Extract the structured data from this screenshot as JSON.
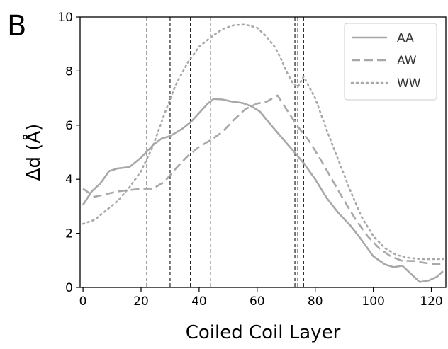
{
  "chart_data": {
    "type": "line",
    "panel_label": "B",
    "xlabel": "Coiled Coil Layer",
    "ylabel": "Δd (Å)",
    "xlim": [
      -1,
      125
    ],
    "ylim": [
      0,
      10
    ],
    "xticks": [
      0,
      20,
      40,
      60,
      80,
      100,
      120
    ],
    "yticks": [
      0,
      2,
      4,
      6,
      8,
      10
    ],
    "legend_position": "top-right",
    "grid": false,
    "vlines": [
      {
        "x": 22,
        "style": "dashed"
      },
      {
        "x": 30,
        "style": "dashed"
      },
      {
        "x": 37,
        "style": "dashed"
      },
      {
        "x": 44,
        "style": "dashed"
      },
      {
        "x": 73,
        "style": "dashed"
      },
      {
        "x": 74,
        "style": "dashed"
      },
      {
        "x": 76,
        "style": "dashed"
      }
    ],
    "series": [
      {
        "name": "AA",
        "style": "solid",
        "color": "#a8a8a8",
        "x": [
          0,
          3,
          6,
          9,
          12,
          16,
          20,
          24,
          27,
          30,
          34,
          37,
          40,
          43,
          45,
          48,
          51,
          55,
          58,
          61,
          64,
          68,
          72,
          76,
          80,
          84,
          88,
          92,
          96,
          100,
          104,
          107,
          110,
          113,
          116,
          119,
          122,
          124
        ],
        "y": [
          3.05,
          3.55,
          3.85,
          4.3,
          4.4,
          4.45,
          4.8,
          5.25,
          5.5,
          5.6,
          5.85,
          6.1,
          6.45,
          6.8,
          6.97,
          6.95,
          6.88,
          6.82,
          6.7,
          6.5,
          6.1,
          5.6,
          5.1,
          4.6,
          4.0,
          3.3,
          2.75,
          2.3,
          1.75,
          1.15,
          0.85,
          0.75,
          0.8,
          0.5,
          0.2,
          0.25,
          0.4,
          0.6
        ]
      },
      {
        "name": "AW",
        "style": "dashed",
        "color": "#a8a8a8",
        "x": [
          0,
          4,
          8,
          12,
          16,
          20,
          24,
          28,
          32,
          36,
          40,
          44,
          48,
          52,
          56,
          60,
          63,
          67,
          70,
          74,
          78,
          82,
          86,
          90,
          94,
          98,
          102,
          106,
          110,
          114,
          118,
          122,
          124
        ],
        "y": [
          3.65,
          3.35,
          3.45,
          3.55,
          3.6,
          3.65,
          3.65,
          3.9,
          4.4,
          4.85,
          5.2,
          5.45,
          5.75,
          6.2,
          6.6,
          6.8,
          6.85,
          7.1,
          6.6,
          5.95,
          5.4,
          4.7,
          3.95,
          3.2,
          2.5,
          1.9,
          1.45,
          1.15,
          0.98,
          0.98,
          0.9,
          0.85,
          0.9
        ]
      },
      {
        "name": "WW",
        "style": "dotted",
        "color": "#a8a8a8",
        "x": [
          0,
          4,
          8,
          12,
          16,
          20,
          24,
          28,
          32,
          36,
          40,
          44,
          48,
          52,
          56,
          60,
          63,
          66,
          68,
          70,
          72,
          74,
          76,
          80,
          84,
          88,
          92,
          96,
          100,
          104,
          108,
          112,
          116,
          120,
          124
        ],
        "y": [
          2.35,
          2.5,
          2.85,
          3.2,
          3.7,
          4.3,
          5.2,
          6.4,
          7.5,
          8.3,
          8.9,
          9.25,
          9.55,
          9.7,
          9.72,
          9.6,
          9.3,
          8.9,
          8.5,
          8.0,
          7.6,
          7.4,
          7.8,
          7.0,
          5.8,
          4.7,
          3.6,
          2.6,
          1.9,
          1.45,
          1.2,
          1.1,
          1.05,
          1.05,
          1.05
        ]
      }
    ]
  },
  "colors": {
    "series_gray": "#a8a8a8",
    "vline": "#222222",
    "axis": "#000000"
  }
}
